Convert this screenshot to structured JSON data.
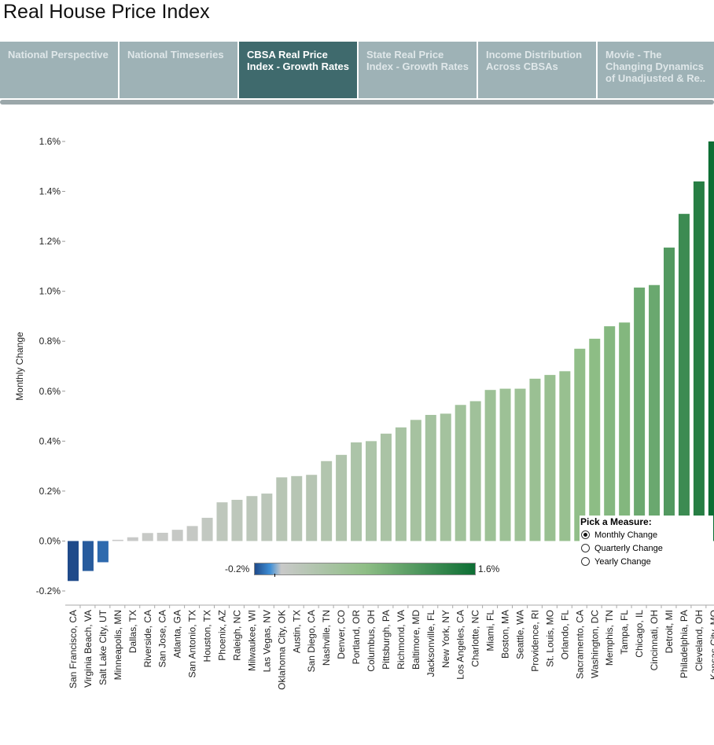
{
  "page": {
    "title": "Real House Price Index"
  },
  "tabs": [
    {
      "label": "National Perspective",
      "active": false
    },
    {
      "label": "National Timeseries",
      "active": false
    },
    {
      "label": "CBSA Real Price Index - Growth Rates",
      "active": true
    },
    {
      "label": "State Real Price Index -  Growth Rates",
      "active": false
    },
    {
      "label": "Income Distribution Across CBSAs",
      "active": false
    },
    {
      "label": "Movie - The Changing Dynamics of Unadjusted & Re..",
      "active": false
    }
  ],
  "measure": {
    "title": "Pick a Measure:",
    "options": [
      "Monthly Change",
      "Quarterly Change",
      "Yearly Change"
    ],
    "selected": "Monthly Change"
  },
  "legend": {
    "min_label": "-0.2%",
    "max_label": "1.6%",
    "colors": [
      "#1f4a8a",
      "#3f8fd6",
      "#c9c9c9",
      "#8fbe86",
      "#0d6e34"
    ]
  },
  "chart_data": {
    "type": "bar",
    "ylabel": "Monthly Change",
    "ylim": [
      -0.2,
      1.6
    ],
    "yticks": [
      "-0.2%",
      "0.0%",
      "0.2%",
      "0.4%",
      "0.6%",
      "0.8%",
      "1.0%",
      "1.2%",
      "1.4%",
      "1.6%"
    ],
    "categories": [
      "San Francisco, CA",
      "Virginia Beach, VA",
      "Salt Lake City, UT",
      "Minneapolis, MN",
      "Dallas, TX",
      "Riverside, CA",
      "San Jose, CA",
      "Atlanta, GA",
      "San Antonio, TX",
      "Houston, TX",
      "Phoenix, AZ",
      "Raleigh, NC",
      "Milwaukee, WI",
      "Las Vegas, NV",
      "Oklahoma City, OK",
      "Austin, TX",
      "San Diego, CA",
      "Nashville, TN",
      "Denver, CO",
      "Portland, OR",
      "Columbus, OH",
      "Pittsburgh, PA",
      "Richmond, VA",
      "Baltimore, MD",
      "Jacksonville, FL",
      "New York, NY",
      "Los Angeles, CA",
      "Charlotte, NC",
      "Miami, FL",
      "Boston, MA",
      "Seattle, WA",
      "Providence, RI",
      "St. Louis, MO",
      "Orlando, FL",
      "Sacramento, CA",
      "Washington, DC",
      "Memphis, TN",
      "Tampa, FL",
      "Chicago, IL",
      "Cincinnati, OH",
      "Detroit, MI",
      "Philadelphia, PA",
      "Cleveland, OH",
      "Kansas City, MO"
    ],
    "values": [
      -0.16,
      -0.12,
      -0.085,
      0.005,
      0.015,
      0.032,
      0.033,
      0.045,
      0.06,
      0.093,
      0.155,
      0.165,
      0.18,
      0.19,
      0.255,
      0.26,
      0.265,
      0.32,
      0.345,
      0.395,
      0.4,
      0.43,
      0.455,
      0.485,
      0.505,
      0.51,
      0.545,
      0.56,
      0.605,
      0.61,
      0.61,
      0.65,
      0.665,
      0.68,
      0.77,
      0.81,
      0.86,
      0.875,
      1.015,
      1.025,
      1.175,
      1.31,
      1.44,
      1.6
    ]
  }
}
